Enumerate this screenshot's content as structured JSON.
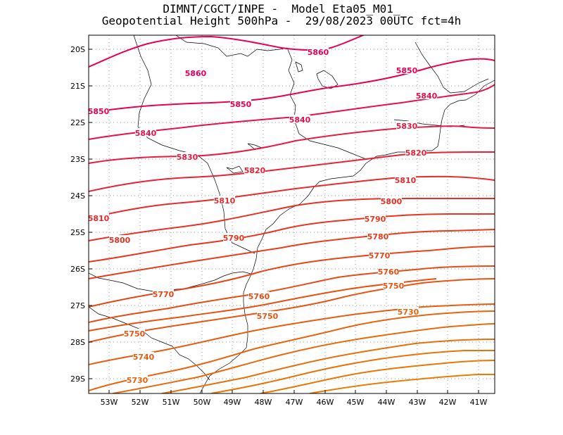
{
  "header": {
    "line1": "DIMNT/CGCT/INPE -  Model Eta05_M01_",
    "line2": "Geopotential Height 500hPa -  29/08/2023 00UTC fct=4h"
  },
  "axes": {
    "lat_labels": [
      "20S",
      "21S",
      "22S",
      "23S",
      "24S",
      "25S",
      "26S",
      "27S",
      "28S",
      "29S"
    ],
    "lon_labels": [
      "53W",
      "52W",
      "51W",
      "50W",
      "49W",
      "48W",
      "47W",
      "46W",
      "45W",
      "44W",
      "43W",
      "42W",
      "41W"
    ]
  },
  "colors": {
    "c5860": "#e8005a",
    "c5850": "#e80052",
    "c5840": "#e8104a",
    "c5830": "#e81a40",
    "c5820": "#e82236",
    "c5810": "#e82a2c",
    "c5800": "#e83024",
    "c5790": "#e8361e",
    "c5780": "#e83c1a",
    "c5770": "#e84416",
    "c5760": "#e84c14",
    "c5750": "#e85412",
    "c5740": "#e85c10",
    "c5730": "#e8640e",
    "coast": "#000000",
    "grid": "#9a9a9a"
  },
  "contours": [
    {
      "value": "5860",
      "color": "#e8005a"
    },
    {
      "value": "5850",
      "color": "#e80052"
    },
    {
      "value": "5840",
      "color": "#e8104a"
    },
    {
      "value": "5830",
      "color": "#e81a40"
    },
    {
      "value": "5820",
      "color": "#e82236"
    },
    {
      "value": "5810",
      "color": "#e82a2c"
    },
    {
      "value": "5800",
      "color": "#e83024"
    },
    {
      "value": "5790",
      "color": "#e8361e"
    },
    {
      "value": "5780",
      "color": "#e83c1a"
    },
    {
      "value": "5770",
      "color": "#e84416"
    },
    {
      "value": "5760",
      "color": "#e84c14"
    },
    {
      "value": "5750",
      "color": "#e85412"
    },
    {
      "value": "5740",
      "color": "#e85c10"
    },
    {
      "value": "5730",
      "color": "#e8640e"
    }
  ]
}
